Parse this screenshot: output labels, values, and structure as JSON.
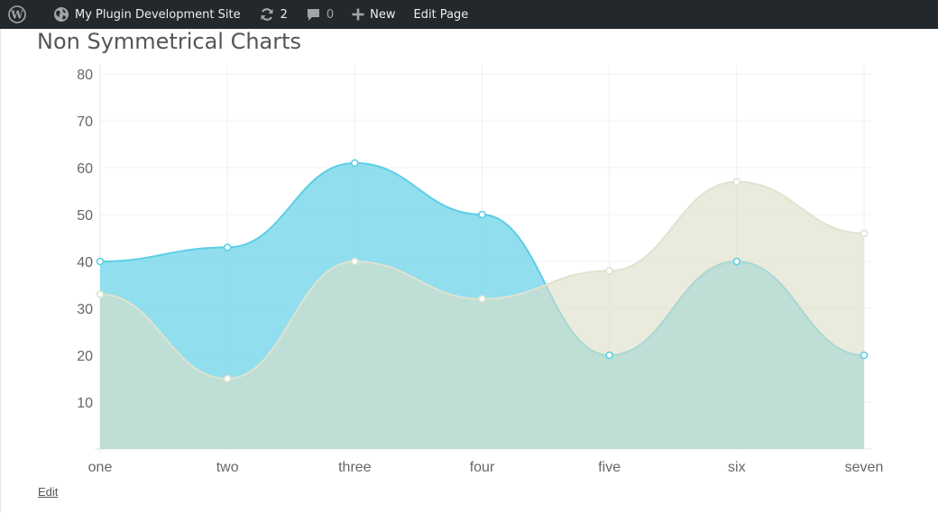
{
  "adminbar": {
    "site_name": "My Plugin Development Site",
    "updates_count": "2",
    "comments_count": "0",
    "new_label": "New",
    "edit_page_label": "Edit Page"
  },
  "page": {
    "title": "Non Symmetrical Charts",
    "edit_link": "Edit"
  },
  "colors": {
    "series_blue_fill": "#7ed8ec",
    "series_blue_line": "#5ccfe6",
    "series_beige_fill": "#dcddc4",
    "series_beige_line": "#dfe3cf",
    "grid": "#f0f0f0"
  },
  "chart_data": {
    "type": "area",
    "categories": [
      "one",
      "two",
      "three",
      "four",
      "five",
      "six",
      "seven"
    ],
    "series": [
      {
        "values": [
          40,
          43,
          61,
          50,
          20,
          40,
          20
        ]
      },
      {
        "values": [
          33,
          15,
          40,
          32,
          38,
          57,
          46
        ]
      }
    ],
    "yticks": [
      10,
      20,
      30,
      40,
      50,
      60,
      70,
      80
    ],
    "ylim": [
      0,
      80
    ],
    "grid": true
  }
}
